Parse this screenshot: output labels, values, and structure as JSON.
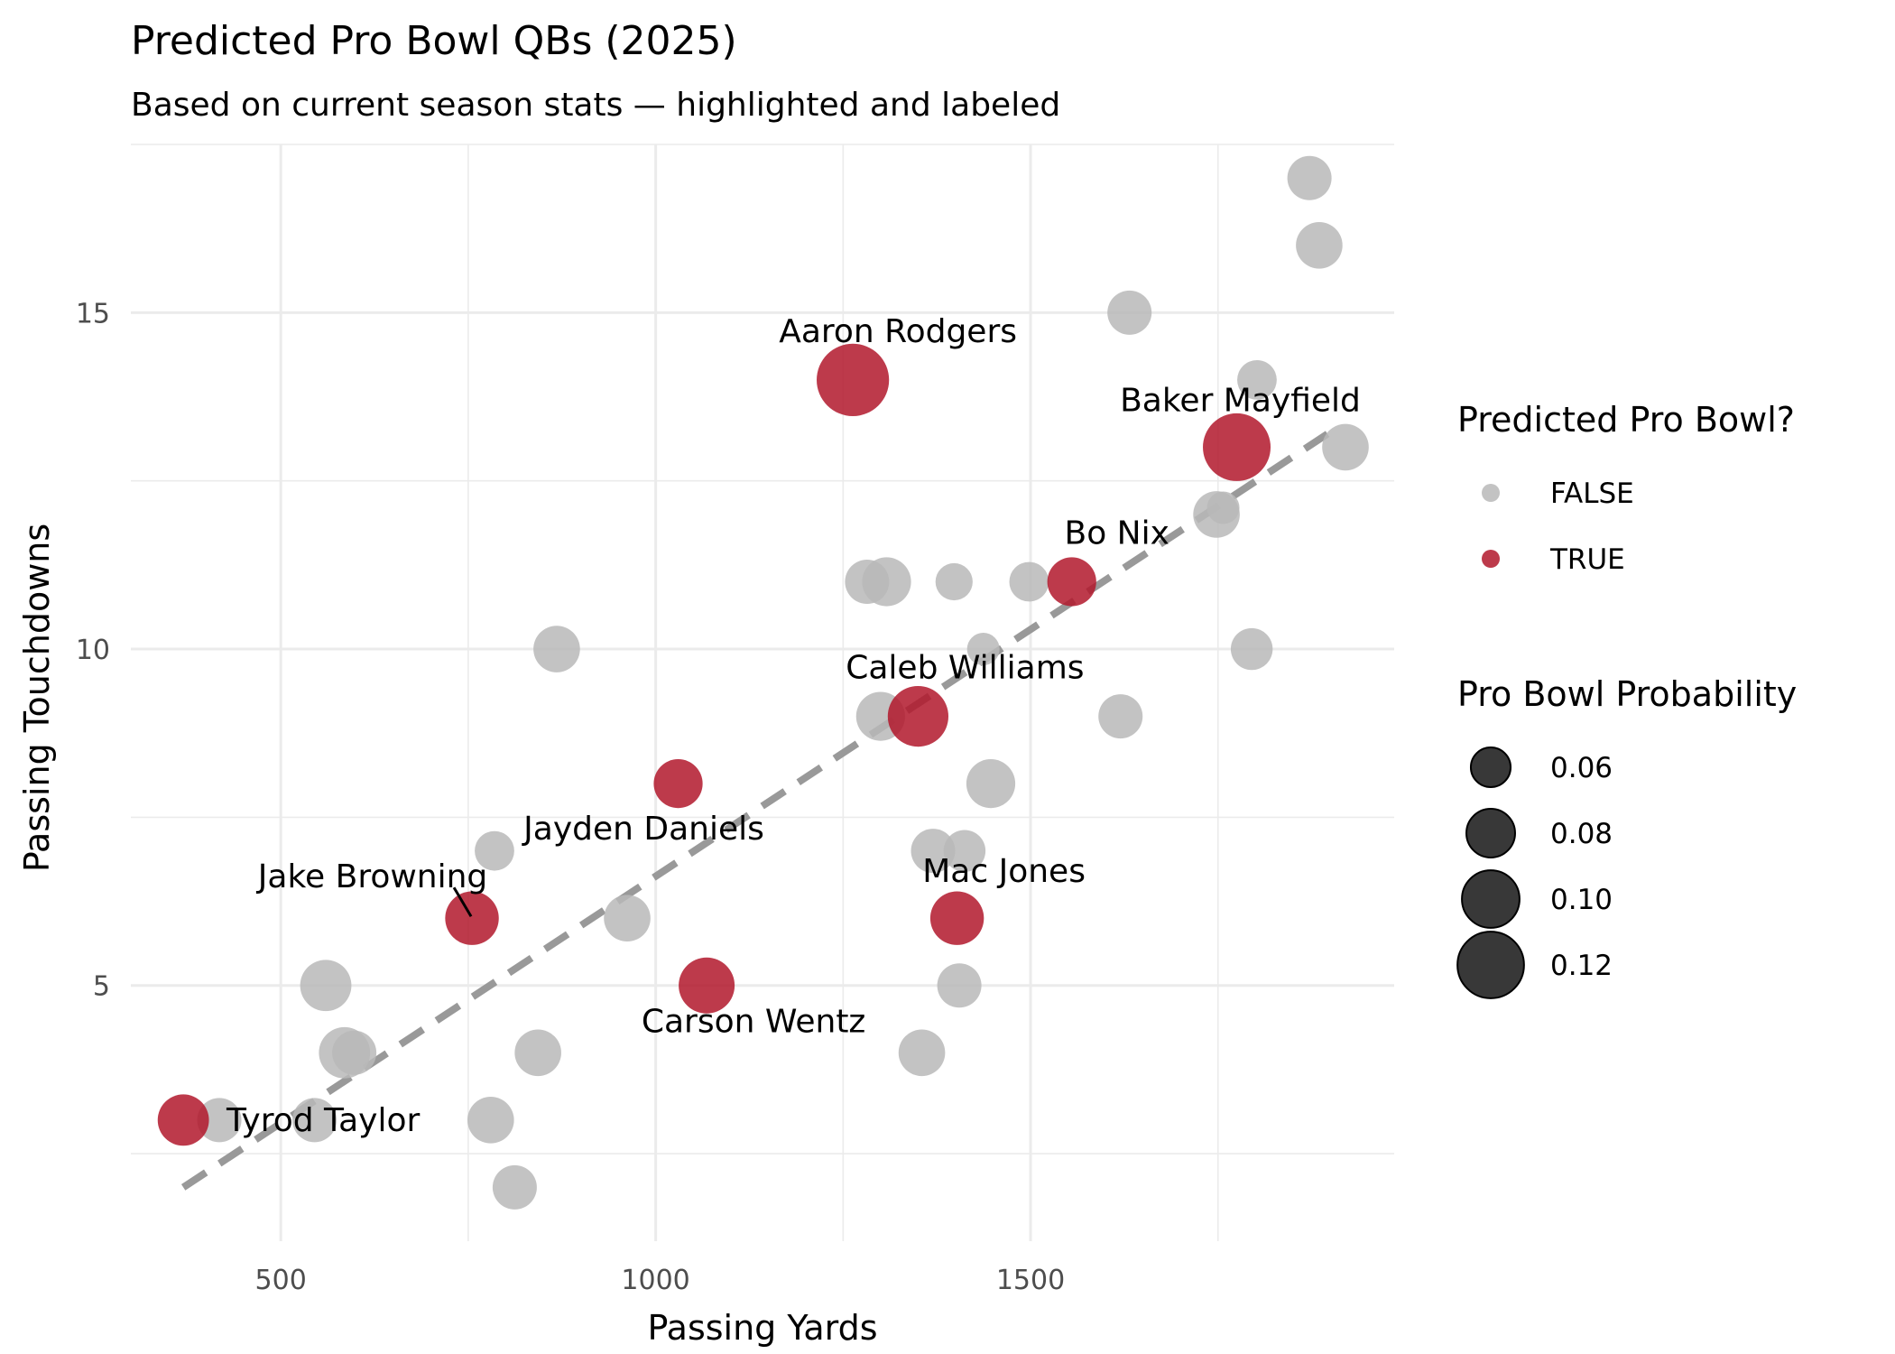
{
  "chart_data": {
    "type": "scatter",
    "title": "Predicted Pro Bowl QBs (2025)",
    "subtitle": "Based on current season stats — highlighted and labeled",
    "xlabel": "Passing Yards",
    "ylabel": "Passing Touchdowns",
    "xlim": [
      300,
      1985
    ],
    "ylim": [
      1.2,
      17.5
    ],
    "x_ticks": [
      500,
      1000,
      1500
    ],
    "y_ticks": [
      5,
      10,
      15
    ],
    "grid": true,
    "legend_placement": "right",
    "legend_color": {
      "title": "Predicted Pro Bowl?",
      "entries": [
        {
          "label": "FALSE",
          "color": "#b8b8b8"
        },
        {
          "label": "TRUE",
          "color": "#b2182b"
        }
      ]
    },
    "legend_size": {
      "title": "Pro Bowl Probability",
      "entries": [
        {
          "label": "0.06",
          "value": 0.06
        },
        {
          "label": "0.08",
          "value": 0.08
        },
        {
          "label": "0.10",
          "value": 0.1
        },
        {
          "label": "0.12",
          "value": 0.12
        }
      ]
    },
    "trend_line": {
      "style": "dashed",
      "color": "#999999",
      "x": [
        370,
        1910
      ],
      "y": [
        2.0,
        13.3
      ]
    },
    "points": [
      {
        "x": 370,
        "y": 3,
        "prob": 0.08,
        "pro_bowl": true,
        "label": "Tyrod Taylor"
      },
      {
        "x": 755,
        "y": 6,
        "prob": 0.085,
        "pro_bowl": true,
        "label": "Jake Browning"
      },
      {
        "x": 1030,
        "y": 8,
        "prob": 0.075,
        "pro_bowl": true,
        "label": "Jayden Daniels"
      },
      {
        "x": 1068,
        "y": 5,
        "prob": 0.09,
        "pro_bowl": true,
        "label": "Carson Wentz"
      },
      {
        "x": 1263,
        "y": 14,
        "prob": 0.125,
        "pro_bowl": true,
        "label": "Aaron Rodgers"
      },
      {
        "x": 1350,
        "y": 9,
        "prob": 0.1,
        "pro_bowl": true,
        "label": "Caleb Williams"
      },
      {
        "x": 1402,
        "y": 6,
        "prob": 0.085,
        "pro_bowl": true,
        "label": "Mac Jones"
      },
      {
        "x": 1555,
        "y": 11,
        "prob": 0.075,
        "pro_bowl": true,
        "label": "Bo Nix"
      },
      {
        "x": 1775,
        "y": 13,
        "prob": 0.115,
        "pro_bowl": true,
        "label": "Baker Mayfield"
      },
      {
        "x": 418,
        "y": 3,
        "prob": 0.065,
        "pro_bowl": false
      },
      {
        "x": 545,
        "y": 3,
        "prob": 0.065,
        "pro_bowl": false
      },
      {
        "x": 560,
        "y": 5,
        "prob": 0.08,
        "pro_bowl": false
      },
      {
        "x": 585,
        "y": 4,
        "prob": 0.08,
        "pro_bowl": false
      },
      {
        "x": 598,
        "y": 4,
        "prob": 0.065,
        "pro_bowl": false
      },
      {
        "x": 780,
        "y": 3,
        "prob": 0.07,
        "pro_bowl": false
      },
      {
        "x": 785,
        "y": 7,
        "prob": 0.055,
        "pro_bowl": false
      },
      {
        "x": 812,
        "y": 2,
        "prob": 0.065,
        "pro_bowl": false
      },
      {
        "x": 843,
        "y": 4,
        "prob": 0.07,
        "pro_bowl": false
      },
      {
        "x": 868,
        "y": 10,
        "prob": 0.07,
        "pro_bowl": false
      },
      {
        "x": 962,
        "y": 6,
        "prob": 0.07,
        "pro_bowl": false
      },
      {
        "x": 1282,
        "y": 11,
        "prob": 0.065,
        "pro_bowl": false
      },
      {
        "x": 1300,
        "y": 9,
        "prob": 0.075,
        "pro_bowl": false
      },
      {
        "x": 1308,
        "y": 11,
        "prob": 0.075,
        "pro_bowl": false
      },
      {
        "x": 1355,
        "y": 4,
        "prob": 0.07,
        "pro_bowl": false
      },
      {
        "x": 1370,
        "y": 7,
        "prob": 0.065,
        "pro_bowl": false
      },
      {
        "x": 1398,
        "y": 11,
        "prob": 0.05,
        "pro_bowl": false
      },
      {
        "x": 1405,
        "y": 5,
        "prob": 0.065,
        "pro_bowl": false
      },
      {
        "x": 1412,
        "y": 7,
        "prob": 0.06,
        "pro_bowl": false
      },
      {
        "x": 1437,
        "y": 10,
        "prob": 0.04,
        "pro_bowl": false
      },
      {
        "x": 1447,
        "y": 8,
        "prob": 0.075,
        "pro_bowl": false
      },
      {
        "x": 1498,
        "y": 11,
        "prob": 0.055,
        "pro_bowl": false
      },
      {
        "x": 1620,
        "y": 9,
        "prob": 0.065,
        "pro_bowl": false
      },
      {
        "x": 1632,
        "y": 15,
        "prob": 0.065,
        "pro_bowl": false
      },
      {
        "x": 1748,
        "y": 12,
        "prob": 0.07,
        "pro_bowl": false
      },
      {
        "x": 1757,
        "y": 12.1,
        "prob": 0.04,
        "pro_bowl": false
      },
      {
        "x": 1795,
        "y": 10,
        "prob": 0.06,
        "pro_bowl": false
      },
      {
        "x": 1802,
        "y": 14,
        "prob": 0.055,
        "pro_bowl": false
      },
      {
        "x": 1872,
        "y": 17,
        "prob": 0.065,
        "pro_bowl": false
      },
      {
        "x": 1885,
        "y": 16,
        "prob": 0.07,
        "pro_bowl": false
      },
      {
        "x": 1920,
        "y": 13,
        "prob": 0.07,
        "pro_bowl": false
      }
    ]
  }
}
